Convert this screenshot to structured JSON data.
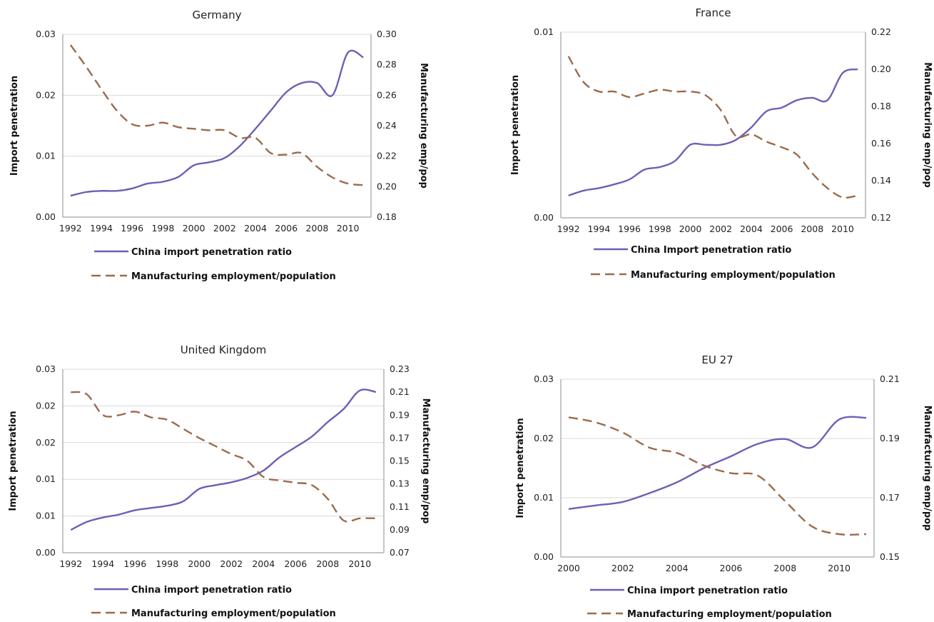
{
  "chart_data": [
    {
      "type": "line",
      "title": "Germany",
      "ylabel_left": "Import penetration",
      "ylabel_right": "Manufacturing emp/pop",
      "x_ticks": [
        "1992",
        "1994",
        "1996",
        "1998",
        "2000",
        "2002",
        "2004",
        "2006",
        "2008",
        "2010"
      ],
      "y_left_ticks": [
        "0.00",
        "0.01",
        "0.02",
        "0.03"
      ],
      "y_right_ticks": [
        "0.18",
        "0.20",
        "0.22",
        "0.24",
        "0.26",
        "0.28",
        "0.30"
      ],
      "ylim_left": [
        0,
        0.03
      ],
      "ylim_right": [
        0.18,
        0.3
      ],
      "grid": true,
      "legend": "bottom",
      "x": [
        1992,
        1993,
        1994,
        1995,
        1996,
        1997,
        1998,
        1999,
        2000,
        2001,
        2002,
        2003,
        2004,
        2005,
        2006,
        2007,
        2008,
        2009,
        2010,
        2011
      ],
      "series": [
        {
          "name": "China import penetration ratio",
          "axis": "left",
          "color": "#6f5fb5",
          "values": [
            0.0035,
            0.0041,
            0.0043,
            0.0043,
            0.0047,
            0.0055,
            0.0058,
            0.0066,
            0.0085,
            0.009,
            0.0097,
            0.0117,
            0.0145,
            0.0175,
            0.0205,
            0.022,
            0.022,
            0.02,
            0.027,
            0.0262
          ]
        },
        {
          "name": "Manufacturing employment/population",
          "axis": "right",
          "color": "#9b6b4a",
          "values": [
            0.293,
            0.279,
            0.264,
            0.25,
            0.241,
            0.24,
            0.242,
            0.239,
            0.238,
            0.237,
            0.237,
            0.232,
            0.232,
            0.222,
            0.221,
            0.222,
            0.213,
            0.206,
            0.202,
            0.201
          ]
        }
      ]
    },
    {
      "type": "line",
      "title": "France",
      "ylabel_left": "Import penetration",
      "ylabel_right": "Manufacturing emp/pop",
      "x_ticks": [
        "1992",
        "1994",
        "1996",
        "1998",
        "2000",
        "2002",
        "2004",
        "2006",
        "2008",
        "2010"
      ],
      "y_left_ticks": [
        "0.00",
        "0.01"
      ],
      "y_right_ticks": [
        "0.12",
        "0.14",
        "0.16",
        "0.18",
        "0.20",
        "0.22"
      ],
      "ylim_left": [
        0,
        0.015
      ],
      "ylim_right": [
        0.12,
        0.22
      ],
      "grid": true,
      "legend": "bottom",
      "x": [
        1992,
        1993,
        1994,
        1995,
        1996,
        1997,
        1998,
        1999,
        2000,
        2001,
        2002,
        2003,
        2004,
        2005,
        2006,
        2007,
        2008,
        2009,
        2010,
        2011
      ],
      "series": [
        {
          "name": "China Import penetration ratio",
          "axis": "left",
          "color": "#6f5fb5",
          "values": [
            0.0018,
            0.0022,
            0.0024,
            0.0027,
            0.0031,
            0.0039,
            0.0041,
            0.0046,
            0.0059,
            0.0059,
            0.0059,
            0.0063,
            0.0073,
            0.0086,
            0.0089,
            0.0095,
            0.0097,
            0.0095,
            0.0117,
            0.012
          ]
        },
        {
          "name": "Manufacturing employment/population",
          "axis": "right",
          "color": "#9b6b4a",
          "values": [
            0.207,
            0.193,
            0.188,
            0.188,
            0.185,
            0.187,
            0.189,
            0.188,
            0.188,
            0.186,
            0.178,
            0.164,
            0.165,
            0.161,
            0.158,
            0.154,
            0.144,
            0.136,
            0.131,
            0.132
          ]
        }
      ]
    },
    {
      "type": "line",
      "title": "United Kingdom",
      "ylabel_left": "Import penetration",
      "ylabel_right": "Manufacturing emp/pop",
      "x_ticks": [
        "1992",
        "1994",
        "1996",
        "1998",
        "2000",
        "2002",
        "2004",
        "2006",
        "2008",
        "2010"
      ],
      "y_left_ticks": [
        "0.00",
        "0.01",
        "0.01",
        "0.02",
        "0.02",
        "0.03"
      ],
      "y_right_ticks": [
        "0.07",
        "0.09",
        "0.11",
        "0.13",
        "0.15",
        "0.17",
        "0.19",
        "0.21",
        "0.23"
      ],
      "ylim_left": [
        0,
        0.025
      ],
      "ylim_right": [
        0.07,
        0.23
      ],
      "grid": true,
      "legend": "bottom",
      "x": [
        1992,
        1993,
        1994,
        1995,
        1996,
        1997,
        1998,
        1999,
        2000,
        2001,
        2002,
        2003,
        2004,
        2005,
        2006,
        2007,
        2008,
        2009,
        2010,
        2011
      ],
      "series": [
        {
          "name": "China import penetration ratio",
          "axis": "left",
          "color": "#6f5fb5",
          "values": [
            0.0031,
            0.0042,
            0.0048,
            0.0052,
            0.0058,
            0.0061,
            0.0064,
            0.007,
            0.0087,
            0.0092,
            0.0096,
            0.0102,
            0.0112,
            0.013,
            0.0144,
            0.0158,
            0.0178,
            0.0196,
            0.0221,
            0.0219
          ]
        },
        {
          "name": "Manufacturing employment/population",
          "axis": "right",
          "color": "#9b6b4a",
          "values": [
            0.21,
            0.208,
            0.19,
            0.19,
            0.193,
            0.188,
            0.186,
            0.178,
            0.17,
            0.163,
            0.156,
            0.15,
            0.136,
            0.133,
            0.131,
            0.129,
            0.117,
            0.098,
            0.1,
            0.1
          ]
        }
      ]
    },
    {
      "type": "line",
      "title": "EU 27",
      "ylabel_left": "Import penetration",
      "ylabel_right": "Manufacturing emp/pop",
      "x_ticks": [
        "2000",
        "2002",
        "2004",
        "2006",
        "2008",
        "2010"
      ],
      "y_left_ticks": [
        "0.00",
        "0.01",
        "0.02",
        "0.03"
      ],
      "y_right_ticks": [
        "0.15",
        "0.17",
        "0.19",
        "0.21"
      ],
      "ylim_left": [
        0,
        0.03
      ],
      "ylim_right": [
        0.15,
        0.22
      ],
      "grid": true,
      "legend": "bottom",
      "x": [
        2000,
        2001,
        2002,
        2003,
        2004,
        2005,
        2006,
        2007,
        2008,
        2009,
        2010,
        2011
      ],
      "series": [
        {
          "name": "China import penetration ratio",
          "axis": "left",
          "color": "#6f5fb5",
          "values": [
            0.0081,
            0.0087,
            0.0093,
            0.0108,
            0.0126,
            0.015,
            0.017,
            0.0191,
            0.0199,
            0.0185,
            0.0232,
            0.0235
          ]
        },
        {
          "name": "Manufacturing employment/population",
          "axis": "right",
          "color": "#9b6b4a",
          "values": [
            0.205,
            0.203,
            0.199,
            0.193,
            0.191,
            0.186,
            0.183,
            0.182,
            0.172,
            0.162,
            0.159,
            0.159
          ]
        }
      ]
    }
  ]
}
